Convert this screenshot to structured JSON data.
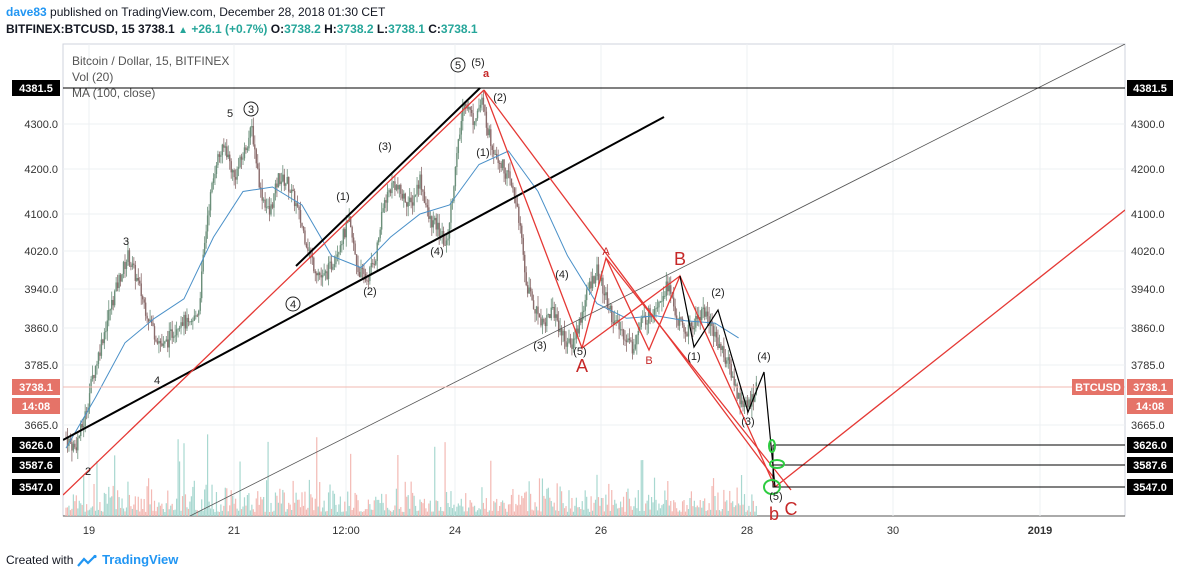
{
  "header": {
    "user": "dave83",
    "published": "published on TradingView.com, December 28, 2018 01:30 CET",
    "symbol": "BITFINEX:BTCUSD, 15",
    "last": "3738.1",
    "change": "+26.1 (+0.7%)",
    "o_label": "O:",
    "o_val": "3738.2",
    "h_label": "H:",
    "h_val": "3738.2",
    "l_label": "L:",
    "l_val": "3738.1",
    "c_label": "C:",
    "c_val": "3738.1"
  },
  "legend": {
    "title": "Bitcoin / Dollar, 15, BITFINEX",
    "vol": "Vol (20)",
    "ma": "MA (100, close)"
  },
  "footer": {
    "created": "Created with",
    "brand": "TradingView"
  },
  "chart_data": {
    "type": "line",
    "symbol": "BTCUSD",
    "ylim": [
      3505,
      4445
    ],
    "y_ticks": [
      4300.0,
      4200.0,
      4100.0,
      4020.0,
      3940.0,
      3860.0,
      3785.0,
      3665.0
    ],
    "x_tick_labels": [
      "19",
      "21",
      "12:00",
      "24",
      "26",
      "28",
      "30",
      "2019"
    ],
    "price_labels": {
      "high_level": "4381.5",
      "current": "3738.1",
      "countdown": "14:08",
      "level_1": "3626.0",
      "level_2": "3587.6",
      "level_3": "3547.0",
      "tag": "BTCUSD"
    },
    "price_path": [
      [
        0,
        3640
      ],
      [
        3,
        3620
      ],
      [
        6,
        3670
      ],
      [
        9,
        3760
      ],
      [
        12,
        3830
      ],
      [
        15,
        3900
      ],
      [
        18,
        3960
      ],
      [
        21,
        4010
      ],
      [
        24,
        3960
      ],
      [
        27,
        3900
      ],
      [
        30,
        3850
      ],
      [
        33,
        3820
      ],
      [
        36,
        3850
      ],
      [
        39,
        3880
      ],
      [
        42,
        3860
      ],
      [
        45,
        3900
      ],
      [
        48,
        4100
      ],
      [
        51,
        4220
      ],
      [
        54,
        4250
      ],
      [
        57,
        4180
      ],
      [
        60,
        4230
      ],
      [
        63,
        4290
      ],
      [
        66,
        4150
      ],
      [
        69,
        4100
      ],
      [
        72,
        4180
      ],
      [
        75,
        4170
      ],
      [
        78,
        4120
      ],
      [
        81,
        4050
      ],
      [
        84,
        3990
      ],
      [
        87,
        3960
      ],
      [
        90,
        3990
      ],
      [
        93,
        4040
      ],
      [
        96,
        4080
      ],
      [
        99,
        3980
      ],
      [
        102,
        3960
      ],
      [
        105,
        4010
      ],
      [
        108,
        4130
      ],
      [
        111,
        4170
      ],
      [
        114,
        4140
      ],
      [
        117,
        4120
      ],
      [
        120,
        4180
      ],
      [
        123,
        4090
      ],
      [
        126,
        4070
      ],
      [
        129,
        4030
      ],
      [
        132,
        4200
      ],
      [
        135,
        4360
      ],
      [
        138,
        4310
      ],
      [
        141,
        4350
      ],
      [
        144,
        4260
      ],
      [
        147,
        4220
      ],
      [
        150,
        4180
      ],
      [
        153,
        4120
      ],
      [
        156,
        3950
      ],
      [
        159,
        3900
      ],
      [
        162,
        3870
      ],
      [
        165,
        3900
      ],
      [
        168,
        3850
      ],
      [
        171,
        3820
      ],
      [
        174,
        3870
      ],
      [
        177,
        3940
      ],
      [
        180,
        3980
      ],
      [
        183,
        3920
      ],
      [
        186,
        3870
      ],
      [
        189,
        3850
      ],
      [
        192,
        3820
      ],
      [
        195,
        3870
      ],
      [
        198,
        3890
      ],
      [
        201,
        3920
      ],
      [
        204,
        3950
      ],
      [
        207,
        3880
      ],
      [
        210,
        3850
      ],
      [
        213,
        3870
      ],
      [
        216,
        3900
      ],
      [
        219,
        3860
      ],
      [
        222,
        3820
      ],
      [
        225,
        3780
      ],
      [
        228,
        3720
      ],
      [
        231,
        3700
      ],
      [
        234,
        3738
      ]
    ],
    "ma_path": [
      [
        0,
        3620
      ],
      [
        10,
        3720
      ],
      [
        20,
        3830
      ],
      [
        30,
        3880
      ],
      [
        40,
        3920
      ],
      [
        50,
        4050
      ],
      [
        60,
        4150
      ],
      [
        70,
        4160
      ],
      [
        80,
        4120
      ],
      [
        90,
        4010
      ],
      [
        100,
        3985
      ],
      [
        110,
        4050
      ],
      [
        120,
        4100
      ],
      [
        130,
        4120
      ],
      [
        140,
        4210
      ],
      [
        150,
        4240
      ],
      [
        160,
        4150
      ],
      [
        170,
        4010
      ],
      [
        180,
        3910
      ],
      [
        190,
        3880
      ],
      [
        200,
        3885
      ],
      [
        210,
        3875
      ],
      [
        220,
        3870
      ],
      [
        228,
        3840
      ]
    ],
    "wave_labels": [
      {
        "text": "2",
        "x": 88,
        "y": 475
      },
      {
        "text": "3",
        "x": 126,
        "y": 245
      },
      {
        "text": "4",
        "x": 157,
        "y": 384
      },
      {
        "text": "5",
        "x": 230,
        "y": 117
      },
      {
        "text": "(1)",
        "x": 343,
        "y": 200
      },
      {
        "text": "(2)",
        "x": 370,
        "y": 295
      },
      {
        "text": "(3)",
        "x": 385,
        "y": 150
      },
      {
        "text": "(4)",
        "x": 437,
        "y": 255
      },
      {
        "text": "(5)",
        "x": 478,
        "y": 66
      },
      {
        "text": "(1)",
        "x": 483,
        "y": 156
      },
      {
        "text": "(2)",
        "x": 500,
        "y": 101
      },
      {
        "text": "(3)",
        "x": 540,
        "y": 349
      },
      {
        "text": "(4)",
        "x": 562,
        "y": 278
      },
      {
        "text": "(5)",
        "x": 580,
        "y": 355
      },
      {
        "text": "(1)",
        "x": 694,
        "y": 360
      },
      {
        "text": "(2)",
        "x": 718,
        "y": 296
      },
      {
        "text": "(3)",
        "x": 748,
        "y": 425
      },
      {
        "text": "(4)",
        "x": 764,
        "y": 360
      },
      {
        "text": "(5)",
        "x": 776,
        "y": 500
      }
    ],
    "circled_labels": [
      {
        "text": "4",
        "x": 293,
        "y": 308
      },
      {
        "text": "3",
        "x": 251,
        "y": 113
      },
      {
        "text": "5",
        "x": 458,
        "y": 69
      }
    ],
    "red_labels": [
      {
        "text": "a",
        "x": 486,
        "y": 77,
        "big": false
      },
      {
        "text": "A",
        "x": 606,
        "y": 255,
        "big": false
      },
      {
        "text": "B",
        "x": 649,
        "y": 364,
        "big": false
      },
      {
        "text": "A",
        "x": 582,
        "y": 372,
        "big": true
      },
      {
        "text": "B",
        "x": 680,
        "y": 265,
        "big": true
      },
      {
        "text": "b",
        "x": 774,
        "y": 520,
        "big": true
      },
      {
        "text": "C",
        "x": 791,
        "y": 515,
        "big": true
      }
    ]
  }
}
